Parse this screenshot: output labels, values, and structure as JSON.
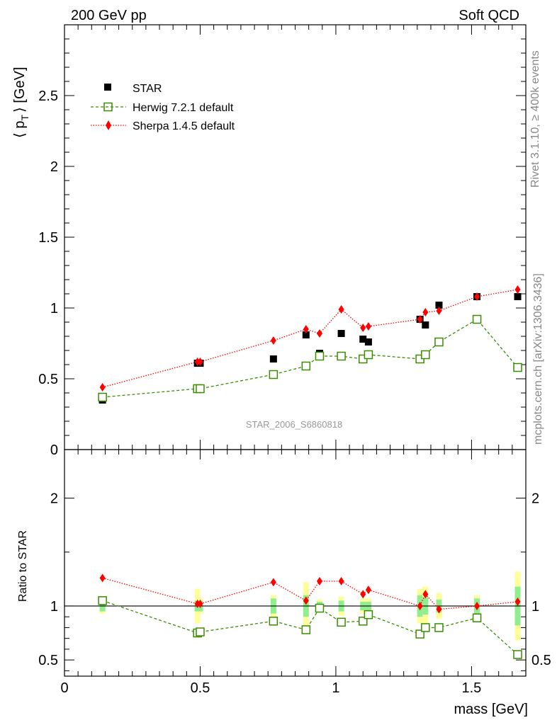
{
  "header": {
    "left": "200 GeV pp",
    "right": "Soft QCD"
  },
  "side_labels": {
    "rivet": "Rivet 3.1.10, ≥ 400k events",
    "mcplots": "mcplots.cern.ch [arXiv:1306.3436]"
  },
  "watermark": "STAR_2006_S6860818",
  "colors": {
    "star": "#000000",
    "herwig": "#3a8c00",
    "sherpa": "#ff0000",
    "band_inner": "#90ee90",
    "band_outer": "#ffff99"
  },
  "chart_data": {
    "type": "scatter",
    "x": [
      0.14,
      0.49,
      0.5,
      0.77,
      0.89,
      0.94,
      1.02,
      1.1,
      1.12,
      1.31,
      1.33,
      1.38,
      1.52,
      1.67
    ],
    "xlabel": "mass [GeV]",
    "xlim": [
      0,
      1.7
    ],
    "x_ticks": [
      0,
      0.5,
      1,
      1.5
    ],
    "x_tick_labels": [
      "0",
      "0.5",
      "1",
      "1.5"
    ],
    "main": {
      "ylabel_main": "⟨ p",
      "ylabel_sub": "T",
      "ylabel_unit": "⟩ [GeV]",
      "ylim": [
        0,
        3.0
      ],
      "y_ticks": [
        0,
        0.5,
        1,
        1.5,
        2,
        2.5
      ],
      "y_tick_labels": [
        "0",
        "0.5",
        "1",
        "1.5",
        "2",
        "2.5"
      ],
      "series": [
        {
          "name": "STAR",
          "marker": "square",
          "values": [
            0.35,
            0.61,
            0.61,
            0.64,
            0.81,
            0.68,
            0.82,
            0.78,
            0.76,
            0.92,
            0.88,
            1.02,
            1.08,
            1.08
          ]
        },
        {
          "name": "Herwig 7.2.1 default",
          "marker": "open-square",
          "values": [
            0.37,
            0.43,
            0.43,
            0.53,
            0.59,
            0.66,
            0.66,
            0.64,
            0.67,
            0.64,
            0.67,
            0.76,
            0.92,
            0.58
          ]
        },
        {
          "name": "Sherpa 1.4.5 default",
          "marker": "diamond",
          "values": [
            0.44,
            0.62,
            0.62,
            0.77,
            0.85,
            0.82,
            0.99,
            0.86,
            0.87,
            0.92,
            0.97,
            0.98,
            1.08,
            1.13
          ]
        }
      ]
    },
    "ratio": {
      "ylabel": "Ratio to STAR",
      "ylim": [
        0.35,
        2.45
      ],
      "y_ticks": [
        0.5,
        1,
        2
      ],
      "y_tick_labels": [
        "0.5",
        "1",
        "2"
      ],
      "band_inner_halfwidth": [
        0.05,
        0.05,
        0.05,
        0.07,
        0.1,
        0.04,
        0.05,
        0.04,
        0.04,
        0.1,
        0.08,
        0.06,
        0.07,
        0.18
      ],
      "band_outer_halfwidth": [
        0.07,
        0.16,
        0.07,
        0.1,
        0.22,
        0.06,
        0.09,
        0.07,
        0.07,
        0.16,
        0.18,
        0.12,
        0.1,
        0.32
      ],
      "series": [
        {
          "name": "Herwig 7.2.1 default",
          "values": [
            1.05,
            0.75,
            0.76,
            0.86,
            0.78,
            0.98,
            0.85,
            0.86,
            0.92,
            0.74,
            0.8,
            0.8,
            0.89,
            0.55
          ]
        },
        {
          "name": "Sherpa 1.4.5 default",
          "values": [
            1.26,
            1.02,
            1.02,
            1.22,
            1.05,
            1.23,
            1.23,
            1.11,
            1.15,
            1.0,
            1.11,
            0.97,
            1.0,
            1.04
          ]
        }
      ]
    }
  }
}
